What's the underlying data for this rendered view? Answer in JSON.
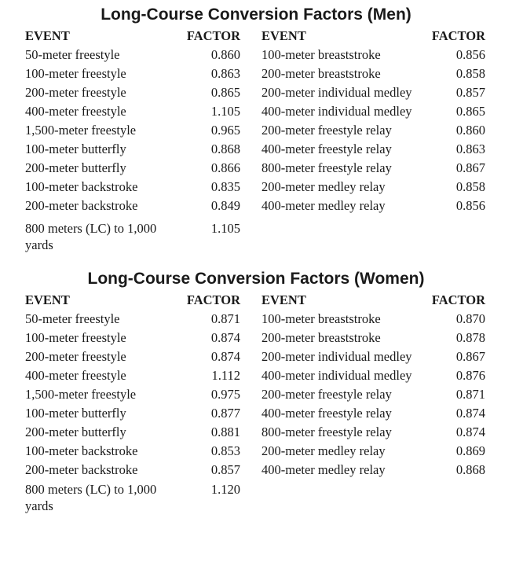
{
  "men": {
    "title": "Long-Course Conversion Factors (Men)",
    "headers": {
      "event": "EVENT",
      "factor": "FACTOR"
    },
    "left": [
      {
        "event": "50-meter freestyle",
        "factor": "0.860"
      },
      {
        "event": "100-meter freestyle",
        "factor": "0.863"
      },
      {
        "event": "200-meter freestyle",
        "factor": "0.865"
      },
      {
        "event": "400-meter freestyle",
        "factor": "1.105"
      },
      {
        "event": "1,500-meter freestyle",
        "factor": "0.965"
      },
      {
        "event": "100-meter butterfly",
        "factor": "0.868"
      },
      {
        "event": "200-meter butterfly",
        "factor": "0.866"
      },
      {
        "event": "100-meter backstroke",
        "factor": "0.835"
      },
      {
        "event": "200-meter backstroke",
        "factor": "0.849"
      },
      {
        "event": "800 meters (LC) to 1,000 yards",
        "factor": "1.105"
      }
    ],
    "right": [
      {
        "event": "100-meter breaststroke",
        "factor": "0.856"
      },
      {
        "event": "200-meter breaststroke",
        "factor": "0.858"
      },
      {
        "event": "200-meter individual medley",
        "factor": "0.857"
      },
      {
        "event": "400-meter individual medley",
        "factor": "0.865"
      },
      {
        "event": "200-meter freestyle relay",
        "factor": "0.860"
      },
      {
        "event": "400-meter freestyle relay",
        "factor": "0.863"
      },
      {
        "event": "800-meter freestyle relay",
        "factor": "0.867"
      },
      {
        "event": "200-meter medley relay",
        "factor": "0.858"
      },
      {
        "event": "400-meter medley relay",
        "factor": "0.856"
      }
    ]
  },
  "women": {
    "title": "Long-Course Conversion Factors (Women)",
    "headers": {
      "event": "EVENT",
      "factor": "FACTOR"
    },
    "left": [
      {
        "event": "50-meter freestyle",
        "factor": "0.871"
      },
      {
        "event": "100-meter freestyle",
        "factor": "0.874"
      },
      {
        "event": "200-meter freestyle",
        "factor": "0.874"
      },
      {
        "event": "400-meter freestyle",
        "factor": "1.112"
      },
      {
        "event": "1,500-meter freestyle",
        "factor": "0.975"
      },
      {
        "event": "100-meter butterfly",
        "factor": "0.877"
      },
      {
        "event": "200-meter butterfly",
        "factor": "0.881"
      },
      {
        "event": "100-meter backstroke",
        "factor": "0.853"
      },
      {
        "event": "200-meter backstroke",
        "factor": "0.857"
      },
      {
        "event": "800 meters (LC) to 1,000 yards",
        "factor": "1.120"
      }
    ],
    "right": [
      {
        "event": "100-meter breaststroke",
        "factor": "0.870"
      },
      {
        "event": "200-meter breaststroke",
        "factor": "0.878"
      },
      {
        "event": "200-meter individual medley",
        "factor": "0.867"
      },
      {
        "event": "400-meter individual medley",
        "factor": "0.876"
      },
      {
        "event": "200-meter freestyle relay",
        "factor": "0.871"
      },
      {
        "event": "400-meter freestyle relay",
        "factor": "0.874"
      },
      {
        "event": "800-meter freestyle relay",
        "factor": "0.874"
      },
      {
        "event": "200-meter medley relay",
        "factor": "0.869"
      },
      {
        "event": "400-meter medley relay",
        "factor": "0.868"
      }
    ]
  }
}
